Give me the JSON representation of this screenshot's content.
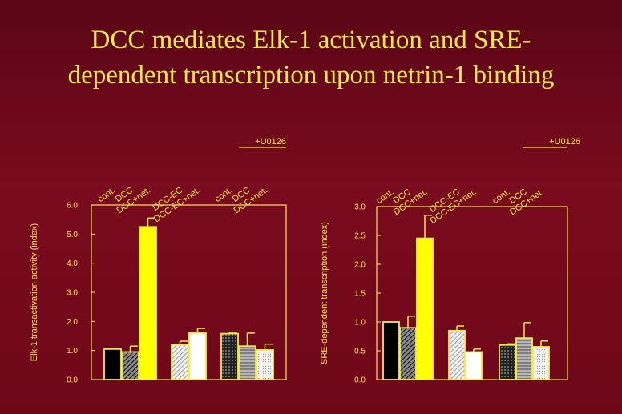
{
  "slide": {
    "title_line1": "DCC mediates Elk-1 activation and SRE-",
    "title_line2": "dependent transcription upon netrin-1 binding"
  },
  "colors": {
    "accent": "#f6e94a",
    "bar_black": "#000000",
    "bar_dark_hatch": "#3a3a3a",
    "bar_yellow": "#ffff00",
    "bar_light_hatch": "#cfcfcf",
    "bar_white": "#ffffff",
    "bar_mesh": "#2a2a2a",
    "bar_grey_hatch": "#9a9a9a",
    "bar_dotted": "#e8e8e8"
  },
  "chart_data": [
    {
      "type": "bar",
      "title": "",
      "xlabel": "",
      "ylabel": "Elk-1 transactivation activity (index)",
      "ylim": [
        0,
        6
      ],
      "yticks": [
        "0.0",
        "1.0",
        "2.0",
        "3.0",
        "4.0",
        "5.0",
        "6.0"
      ],
      "treatment_label": "+U0126",
      "categories": [
        "cont.",
        "DCC",
        "DCC+net.",
        "DCC-EC",
        "DCC-EC+net.",
        "cont.",
        "DCC",
        "DCC+net."
      ],
      "values": [
        1.05,
        0.95,
        5.25,
        1.2,
        1.6,
        1.58,
        1.15,
        1.02
      ],
      "errors": [
        0.0,
        0.2,
        0.3,
        0.12,
        0.16,
        0.05,
        0.45,
        0.2
      ],
      "patterns": [
        "black",
        "dark-hatch",
        "yellow",
        "light-hatch",
        "white",
        "mesh",
        "grey-hatch",
        "dotted"
      ],
      "groups": [
        [
          0,
          1,
          2
        ],
        [
          3,
          4
        ],
        [
          5,
          6,
          7
        ]
      ]
    },
    {
      "type": "bar",
      "title": "",
      "xlabel": "",
      "ylabel": "SRE-dependent transcription (index)",
      "ylim": [
        0,
        3
      ],
      "yticks": [
        "0.0",
        "0.5",
        "1.0",
        "1.5",
        "2.0",
        "2.5",
        "3.0"
      ],
      "treatment_label": "+U0126",
      "categories": [
        "cont.",
        "DCC",
        "DCC+net.",
        "DCC-EC",
        "DCC-EC+net.",
        "cont.",
        "DCC",
        "DCC+net."
      ],
      "values": [
        1.0,
        0.9,
        2.45,
        0.85,
        0.48,
        0.6,
        0.72,
        0.57
      ],
      "errors": [
        0.0,
        0.2,
        0.4,
        0.08,
        0.05,
        0.02,
        0.27,
        0.1
      ],
      "patterns": [
        "black",
        "dark-hatch",
        "yellow",
        "light-hatch",
        "white",
        "mesh",
        "grey-hatch",
        "dotted"
      ],
      "groups": [
        [
          0,
          1,
          2
        ],
        [
          3,
          4
        ],
        [
          5,
          6,
          7
        ]
      ]
    }
  ]
}
